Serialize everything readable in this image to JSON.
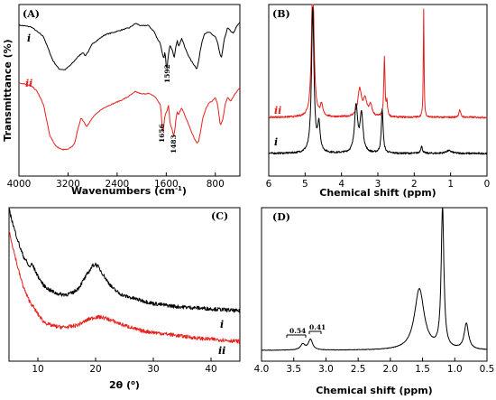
{
  "chart_data": [
    {
      "panel": "(A)",
      "type": "line",
      "xlabel": "Wavenumbers (cm",
      "xlabel_sup": "-1",
      "xlabel_end": ")",
      "ylabel": "Transmittance (%)",
      "xlim": [
        4000,
        400
      ],
      "x_reversed": true,
      "xticks": [
        4000,
        3200,
        2400,
        1600,
        800
      ],
      "xtick_labels": [
        "4000",
        "3200",
        "2400",
        "1600",
        "800"
      ],
      "annotations": [
        "1592",
        "1656",
        "1483"
      ],
      "series": [
        {
          "name": "i",
          "color": "#000000",
          "x": [
            4000,
            3800,
            3600,
            3450,
            3350,
            3250,
            3150,
            3050,
            2960,
            2920,
            2860,
            2800,
            2600,
            2400,
            2200,
            2100,
            2000,
            1900,
            1800,
            1750,
            1700,
            1660,
            1640,
            1620,
            1600,
            1592,
            1570,
            1540,
            1500,
            1470,
            1440,
            1420,
            1400,
            1380,
            1350,
            1320,
            1300,
            1250,
            1200,
            1150,
            1100,
            1070,
            1040,
            1010,
            980,
            950,
            900,
            850,
            800,
            760,
            720,
            700,
            650,
            600,
            550,
            500,
            450,
            400
          ],
          "y": [
            0.95,
            0.93,
            0.82,
            0.55,
            0.45,
            0.44,
            0.5,
            0.58,
            0.64,
            0.6,
            0.66,
            0.74,
            0.84,
            0.88,
            0.92,
            0.97,
            0.94,
            0.95,
            0.88,
            0.8,
            0.75,
            0.62,
            0.56,
            0.66,
            0.48,
            0.42,
            0.58,
            0.72,
            0.66,
            0.58,
            0.72,
            0.78,
            0.7,
            0.74,
            0.8,
            0.75,
            0.7,
            0.62,
            0.55,
            0.5,
            0.45,
            0.55,
            0.68,
            0.78,
            0.85,
            0.86,
            0.87,
            0.84,
            0.82,
            0.74,
            0.6,
            0.58,
            0.8,
            0.92,
            0.88,
            0.86,
            0.94,
            0.98
          ]
        },
        {
          "name": "ii",
          "color": "#e8201c",
          "x": [
            4000,
            3800,
            3700,
            3600,
            3500,
            3400,
            3300,
            3200,
            3100,
            3050,
            2990,
            2940,
            2900,
            2860,
            2800,
            2700,
            2600,
            2500,
            2400,
            2300,
            2200,
            2100,
            2000,
            1900,
            1800,
            1750,
            1700,
            1690,
            1656,
            1620,
            1590,
            1560,
            1540,
            1500,
            1483,
            1460,
            1440,
            1420,
            1400,
            1380,
            1350,
            1320,
            1300,
            1250,
            1200,
            1150,
            1100,
            1070,
            1040,
            1000,
            950,
            900,
            850,
            800,
            770,
            740,
            720,
            680,
            640,
            600,
            550,
            500,
            450,
            400
          ],
          "y": [
            0.95,
            0.92,
            0.85,
            0.7,
            0.35,
            0.22,
            0.18,
            0.18,
            0.24,
            0.38,
            0.55,
            0.5,
            0.45,
            0.48,
            0.55,
            0.62,
            0.67,
            0.7,
            0.73,
            0.76,
            0.8,
            0.85,
            0.82,
            0.83,
            0.8,
            0.76,
            0.7,
            0.68,
            0.35,
            0.58,
            0.62,
            0.7,
            0.5,
            0.4,
            0.33,
            0.4,
            0.55,
            0.62,
            0.58,
            0.62,
            0.66,
            0.62,
            0.58,
            0.5,
            0.4,
            0.32,
            0.25,
            0.28,
            0.4,
            0.55,
            0.66,
            0.72,
            0.74,
            0.78,
            0.72,
            0.58,
            0.46,
            0.52,
            0.7,
            0.78,
            0.74,
            0.8,
            0.85,
            0.9
          ]
        }
      ]
    },
    {
      "panel": "(B)",
      "type": "line",
      "xlabel": "Chemical shift (ppm)",
      "xlim": [
        6,
        0
      ],
      "x_reversed": true,
      "xticks": [
        6,
        5,
        4,
        3,
        2,
        1,
        0
      ],
      "xtick_labels": [
        "6",
        "5",
        "4",
        "3",
        "2",
        "1",
        "0"
      ],
      "series": [
        {
          "name": "i",
          "color": "#000000",
          "peaks": [
            [
              4.79,
              0.04,
              1.6
            ],
            [
              4.62,
              0.04,
              0.3
            ],
            [
              3.6,
              0.05,
              0.52
            ],
            [
              3.45,
              0.05,
              0.42
            ],
            [
              2.88,
              0.03,
              0.48
            ],
            [
              1.8,
              0.03,
              0.08
            ],
            [
              1.05,
              0.1,
              0.03
            ]
          ]
        },
        {
          "name": "ii",
          "color": "#e8201c",
          "peaks": [
            [
              4.79,
              0.04,
              1.6
            ],
            [
              4.55,
              0.04,
              0.12
            ],
            [
              3.5,
              0.06,
              0.3
            ],
            [
              3.35,
              0.06,
              0.18
            ],
            [
              3.2,
              0.05,
              0.12
            ],
            [
              2.82,
              0.02,
              0.65
            ],
            [
              2.75,
              0.02,
              0.15
            ],
            [
              1.74,
              0.012,
              1.2
            ],
            [
              0.75,
              0.03,
              0.08
            ]
          ]
        }
      ]
    },
    {
      "panel": "(C)",
      "type": "line",
      "xlabel": "2θ (",
      "xlabel_sup": "o",
      "xlabel_end": ")",
      "xlim": [
        5,
        45
      ],
      "xticks": [
        10,
        20,
        30,
        40
      ],
      "xtick_labels": [
        "10",
        "20",
        "30",
        "40"
      ],
      "series": [
        {
          "name": "i",
          "color": "#000000",
          "x": [
            5,
            5.5,
            6,
            6.5,
            7,
            7.5,
            8,
            8.5,
            9,
            9.5,
            10,
            11,
            12,
            13,
            14,
            15,
            16,
            17,
            18,
            19,
            19.5,
            20,
            20.5,
            21,
            22,
            23,
            24,
            25,
            26,
            27,
            28,
            29,
            30,
            32,
            34,
            36,
            38,
            40,
            42,
            45
          ],
          "y": [
            1.0,
            0.93,
            0.86,
            0.8,
            0.74,
            0.69,
            0.66,
            0.62,
            0.64,
            0.6,
            0.56,
            0.5,
            0.47,
            0.45,
            0.44,
            0.44,
            0.45,
            0.48,
            0.54,
            0.6,
            0.63,
            0.64,
            0.62,
            0.59,
            0.53,
            0.48,
            0.45,
            0.43,
            0.42,
            0.41,
            0.4,
            0.39,
            0.38,
            0.37,
            0.36,
            0.355,
            0.35,
            0.345,
            0.34,
            0.33
          ]
        },
        {
          "name": "ii",
          "color": "#e8201c",
          "x": [
            5,
            5.5,
            6,
            6.5,
            7,
            7.5,
            8,
            8.5,
            9,
            9.5,
            10,
            11,
            12,
            13,
            14,
            15,
            16,
            17,
            18,
            19,
            20,
            21,
            22,
            23,
            24,
            25,
            26,
            27,
            28,
            29,
            30,
            32,
            34,
            36,
            38,
            40,
            42,
            45
          ],
          "y": [
            0.86,
            0.78,
            0.7,
            0.62,
            0.55,
            0.49,
            0.44,
            0.4,
            0.37,
            0.34,
            0.31,
            0.26,
            0.24,
            0.23,
            0.225,
            0.225,
            0.23,
            0.24,
            0.26,
            0.28,
            0.29,
            0.29,
            0.28,
            0.265,
            0.25,
            0.235,
            0.225,
            0.21,
            0.2,
            0.195,
            0.19,
            0.18,
            0.17,
            0.16,
            0.15,
            0.145,
            0.14,
            0.13
          ]
        }
      ]
    },
    {
      "panel": "(D)",
      "type": "line",
      "xlabel": "Chemical shift (ppm)",
      "xlim": [
        4.0,
        0.5
      ],
      "x_reversed": true,
      "xticks": [
        4.0,
        3.5,
        3.0,
        2.5,
        2.0,
        1.5,
        1.0,
        0.5
      ],
      "xtick_labels": [
        "4.0",
        "3.5",
        "3.0",
        "2.5",
        "2.0",
        "1.5",
        "1.0",
        "0.5"
      ],
      "annotations": [
        "0.54",
        "0.41"
      ],
      "series": [
        {
          "name": "",
          "color": "#000000",
          "peaks": [
            [
              3.36,
              0.04,
              0.05
            ],
            [
              3.24,
              0.04,
              0.09
            ],
            [
              1.55,
              0.09,
              0.52
            ],
            [
              1.19,
              0.025,
              1.2
            ],
            [
              0.82,
              0.04,
              0.22
            ]
          ]
        }
      ]
    }
  ]
}
